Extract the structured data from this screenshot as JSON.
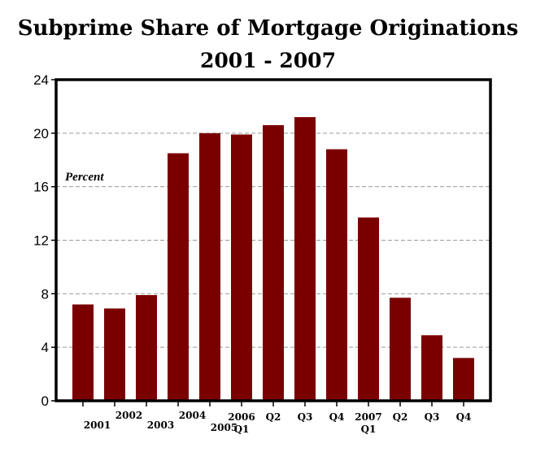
{
  "chart_data": {
    "type": "bar",
    "title": "Subprime Share of Mortgage Originations",
    "subtitle": "2001 - 2007",
    "ylabel": "Percent",
    "xlabel": "",
    "ylim": [
      0,
      24
    ],
    "yticks": [
      0,
      4,
      8,
      12,
      16,
      20,
      24
    ],
    "grid": true,
    "bar_color": "#7a0000",
    "categories": [
      {
        "line1": "2001",
        "line2": ""
      },
      {
        "line1": "2002",
        "line2": ""
      },
      {
        "line1": "2003",
        "line2": ""
      },
      {
        "line1": "2004",
        "line2": ""
      },
      {
        "line1": "2005",
        "line2": ""
      },
      {
        "line1": "2006",
        "line2": "Q1"
      },
      {
        "line1": "Q2",
        "line2": ""
      },
      {
        "line1": "Q3",
        "line2": ""
      },
      {
        "line1": "Q4",
        "line2": ""
      },
      {
        "line1": "2007",
        "line2": "Q1"
      },
      {
        "line1": "Q2",
        "line2": ""
      },
      {
        "line1": "Q3",
        "line2": ""
      },
      {
        "line1": "Q4",
        "line2": ""
      }
    ],
    "values": [
      7.2,
      6.9,
      7.9,
      18.5,
      20.0,
      19.9,
      20.6,
      21.2,
      18.8,
      13.7,
      7.7,
      4.9,
      3.2
    ]
  }
}
